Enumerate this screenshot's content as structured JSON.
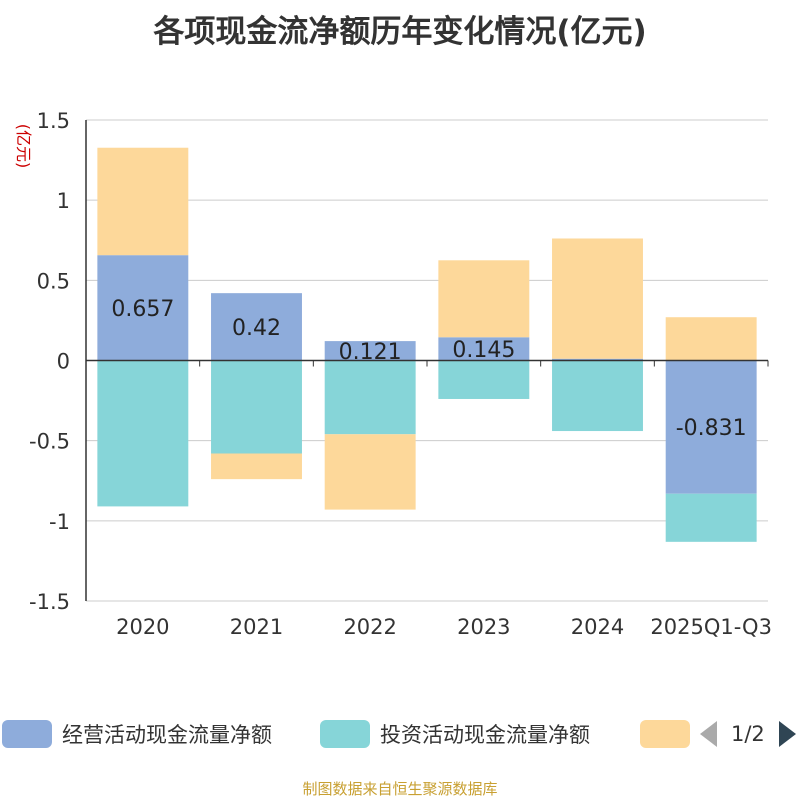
{
  "title": "各项现金流净额历年变化情况(亿元)",
  "footer": "制图数据来自恒生聚源数据库",
  "legend": {
    "items": [
      {
        "label": "经营活动现金流量净额",
        "color": "#8eacdb"
      },
      {
        "label": "投资活动现金流量净额",
        "color": "#86d5d8"
      },
      {
        "label": "",
        "color": "#fdd89a"
      }
    ],
    "page": "1/2"
  },
  "chart_data": {
    "type": "bar",
    "stacked": true,
    "ylabel": "(亿元)",
    "ylim": [
      -1.5,
      1.5
    ],
    "yticks": [
      1.5,
      1,
      0.5,
      0,
      -0.5,
      -1,
      -1.5
    ],
    "ytick_labels": [
      "1.5",
      "1",
      "0.5",
      "0",
      "-0.5",
      "-1",
      "-1.5"
    ],
    "grid": true,
    "categories": [
      "2020",
      "2021",
      "2022",
      "2023",
      "2024",
      "2025Q1-Q3"
    ],
    "series": [
      {
        "name": "经营活动现金流量净额",
        "color": "#8eacdb",
        "values": [
          0.657,
          0.42,
          0.121,
          0.145,
          0.011,
          -0.831
        ],
        "data_labels": [
          "0.657",
          "0.42",
          "0.121",
          "0.145",
          "",
          "-0.831"
        ]
      },
      {
        "name": "投资活动现金流量净额",
        "color": "#86d5d8",
        "values": [
          -0.91,
          -0.58,
          -0.46,
          -0.24,
          -0.44,
          -0.3
        ]
      },
      {
        "color": "#fdd89a",
        "values": [
          0.67,
          -0.16,
          -0.47,
          0.48,
          0.75,
          0.27
        ]
      }
    ]
  }
}
